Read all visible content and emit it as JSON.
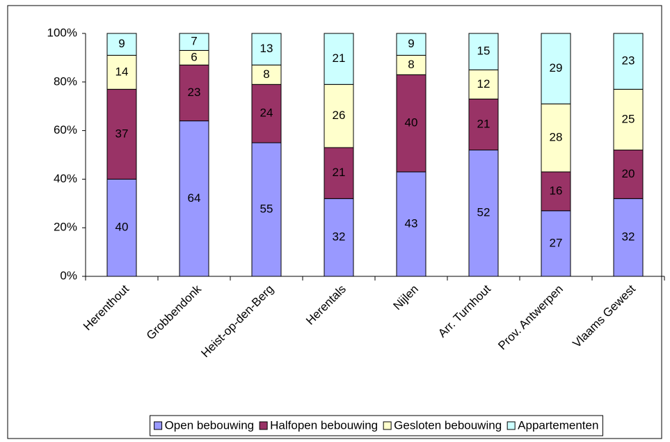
{
  "chart_data": {
    "type": "stacked_bar",
    "categories": [
      "Herenthout",
      "Grobbendonk",
      "Heist-op-den-Berg",
      "Herentals",
      "Nijlen",
      "Arr. Turnhout",
      "Prov. Antwerpen",
      "Vlaams Gewest"
    ],
    "series": [
      {
        "name": "Open bebouwing",
        "color": "#9999ff",
        "values": [
          40,
          64,
          55,
          32,
          43,
          52,
          27,
          32
        ]
      },
      {
        "name": "Halfopen bebouwing",
        "color": "#993366",
        "values": [
          37,
          23,
          24,
          21,
          40,
          21,
          16,
          20
        ]
      },
      {
        "name": "Gesloten bebouwing",
        "color": "#ffffcc",
        "values": [
          14,
          6,
          8,
          26,
          8,
          12,
          28,
          25
        ]
      },
      {
        "name": "Appartementen",
        "color": "#ccffff",
        "values": [
          9,
          7,
          13,
          21,
          9,
          15,
          29,
          23
        ]
      }
    ],
    "ylim": [
      0,
      100
    ],
    "yticks": [
      {
        "value": 0,
        "label": "0%"
      },
      {
        "value": 20,
        "label": "20%"
      },
      {
        "value": 40,
        "label": "40%"
      },
      {
        "value": 60,
        "label": "60%"
      },
      {
        "value": 80,
        "label": "80%"
      },
      {
        "value": 100,
        "label": "100%"
      }
    ],
    "legend": "bottom"
  }
}
